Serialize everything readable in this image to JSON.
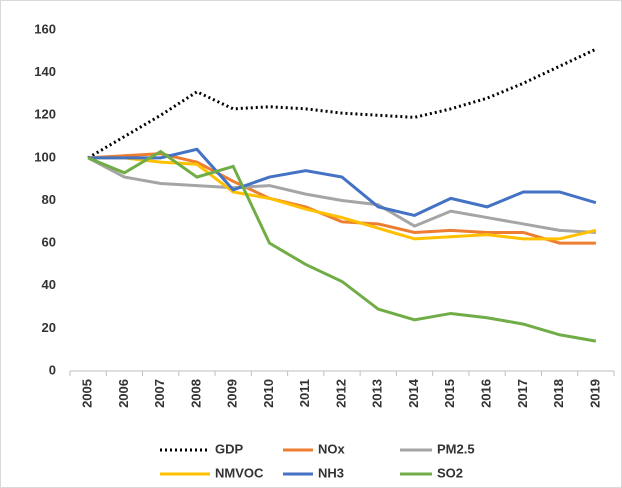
{
  "chart_data": {
    "type": "line",
    "categories": [
      "2005",
      "2006",
      "2007",
      "2008",
      "2009",
      "2010",
      "2011",
      "2012",
      "2013",
      "2014",
      "2015",
      "2016",
      "2017",
      "2018",
      "2019"
    ],
    "series": [
      {
        "name": "GDP",
        "color": "#000000",
        "style": "dotted",
        "values": [
          100,
          110,
          120,
          131,
          123,
          124,
          123,
          121,
          120,
          119,
          123,
          128,
          135,
          143,
          151
        ]
      },
      {
        "name": "NOx",
        "color": "#ed7d31",
        "values": [
          100,
          101,
          102,
          98,
          89,
          81,
          77,
          70,
          69,
          65,
          66,
          65,
          65,
          60,
          60
        ]
      },
      {
        "name": "PM2.5",
        "color": "#a5a5a5",
        "values": [
          100,
          91,
          88,
          87,
          86,
          87,
          83,
          80,
          78,
          68,
          75,
          72,
          69,
          66,
          65
        ]
      },
      {
        "name": "NMVOC",
        "color": "#ffc000",
        "values": [
          100,
          100,
          98,
          97,
          84,
          81,
          76,
          72,
          67,
          62,
          63,
          64,
          62,
          62,
          66
        ]
      },
      {
        "name": "NH3",
        "color": "#4472c4",
        "values": [
          100,
          100,
          100,
          104,
          85,
          91,
          94,
          91,
          77,
          73,
          81,
          77,
          84,
          84,
          79
        ]
      },
      {
        "name": "SO2",
        "color": "#70ad47",
        "values": [
          100,
          93,
          103,
          91,
          96,
          60,
          50,
          42,
          29,
          24,
          27,
          25,
          22,
          17,
          14
        ]
      }
    ],
    "ylim": [
      0,
      160
    ],
    "yticks": [
      0,
      20,
      40,
      60,
      80,
      100,
      120,
      140,
      160
    ],
    "grid": false,
    "legend": "bottom"
  }
}
